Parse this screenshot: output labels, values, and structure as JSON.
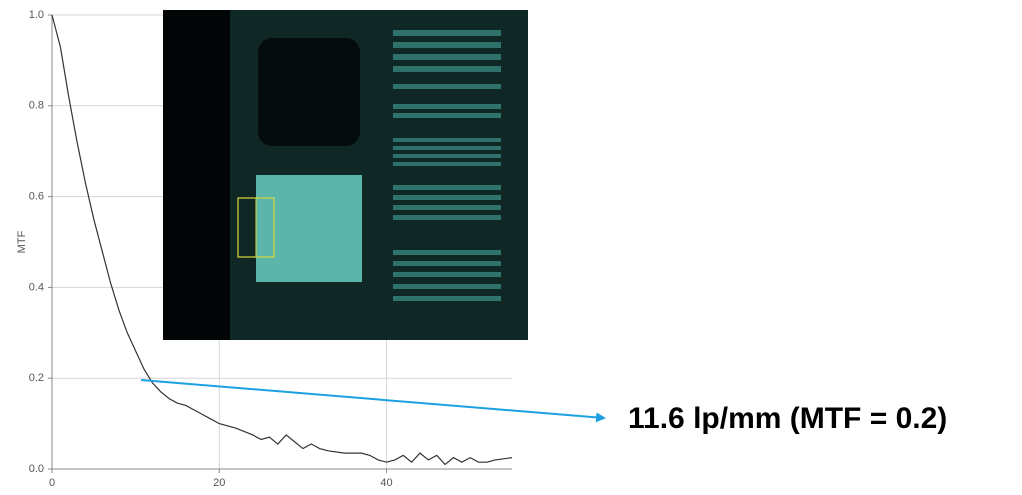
{
  "chart_data": {
    "type": "line",
    "ylabel": "MTF",
    "x": [
      0,
      1,
      2,
      3,
      4,
      5,
      6,
      7,
      8,
      9,
      10,
      11,
      12,
      13,
      14,
      15,
      16,
      17,
      18,
      19,
      20,
      22,
      24,
      25,
      26,
      27,
      28,
      29,
      30,
      31,
      32,
      33,
      35,
      37,
      38,
      39,
      40,
      41,
      42,
      43,
      44,
      45,
      46,
      47,
      48,
      49,
      50,
      51,
      52,
      53,
      55
    ],
    "values": [
      1.0,
      0.93,
      0.82,
      0.72,
      0.63,
      0.55,
      0.48,
      0.41,
      0.35,
      0.3,
      0.26,
      0.22,
      0.19,
      0.17,
      0.155,
      0.145,
      0.14,
      0.13,
      0.12,
      0.11,
      0.1,
      0.09,
      0.075,
      0.065,
      0.07,
      0.055,
      0.075,
      0.06,
      0.045,
      0.055,
      0.045,
      0.04,
      0.035,
      0.035,
      0.03,
      0.02,
      0.015,
      0.02,
      0.03,
      0.015,
      0.035,
      0.02,
      0.03,
      0.01,
      0.025,
      0.015,
      0.025,
      0.015,
      0.015,
      0.02,
      0.025
    ],
    "color": "#333333",
    "xlim": [
      0,
      55
    ],
    "xticks": [
      0,
      20,
      40
    ],
    "ylim": [
      0,
      1
    ],
    "yticks": [
      {
        "value": 0,
        "label": "0.0"
      },
      0.2,
      0.4,
      0.6,
      0.8,
      {
        "value": 1,
        "label": "1.0"
      }
    ],
    "grid": true,
    "annotation": "11.6 lp/mm (MTF = 0.2)"
  }
}
